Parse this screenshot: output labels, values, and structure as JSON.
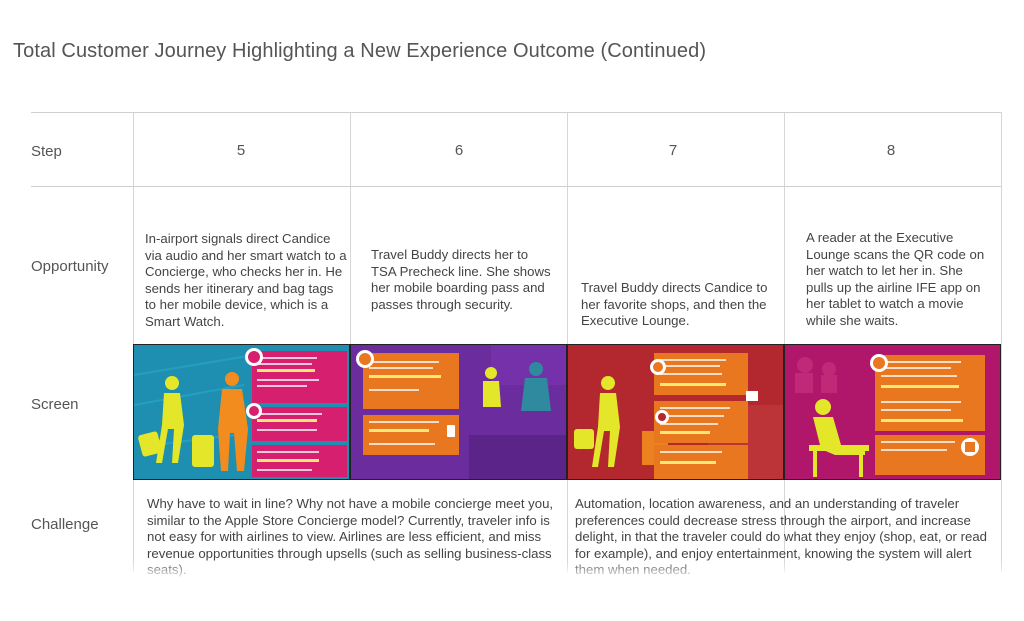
{
  "title": "Total Customer Journey Highlighting a New Experience Outcome (Continued)",
  "rows": {
    "step": "Step",
    "opportunity": "Opportunity",
    "screen": "Screen",
    "challenge": "Challenge"
  },
  "steps": [
    {
      "number": "5",
      "opportunity": "In-airport signals direct Candice via audio and her smart watch to a Concierge, who checks her in. He sends her itinerary and bag tags to her mobile device, which is a Smart Watch.",
      "screen_bg": "#1e8fb0"
    },
    {
      "number": "6",
      "opportunity": "Travel Buddy directs her to TSA Precheck line. She shows her mobile boarding pass and passes through security.",
      "screen_bg": "#6b2c9e"
    },
    {
      "number": "7",
      "opportunity": "Travel Buddy directs Candice to her favorite shops, and then the Executive Lounge.",
      "screen_bg": "#b3282e"
    },
    {
      "number": "8",
      "opportunity": "A reader at the Executive Lounge scans the QR code on her watch to let her in. She pulls up the airline IFE app on her tablet to watch a movie while she waits.",
      "screen_bg": "#b0176a"
    }
  ],
  "challenges": [
    "Why have to wait in line? Why not have a mobile concierge meet you, similar to the Apple Store Concierge model? Currently, traveler info is not easy for with airlines to view. Airlines are less efficient, and miss revenue opportunities through upsells (such as selling business-class seats).",
    "Automation, location awareness, and an understanding of traveler preferences could decrease stress through the airport, and increase delight, in that the traveler could do what they enjoy (shop, eat, or read for example), and enjoy entertainment, knowing the system will alert them when needed."
  ],
  "colors": {
    "figure_yellow": "#e4e62a",
    "figure_orange": "#f28c1e",
    "card_pink": "#d61f6e",
    "card_orange": "#e8771f",
    "card_purple": "#8a3bb8"
  }
}
